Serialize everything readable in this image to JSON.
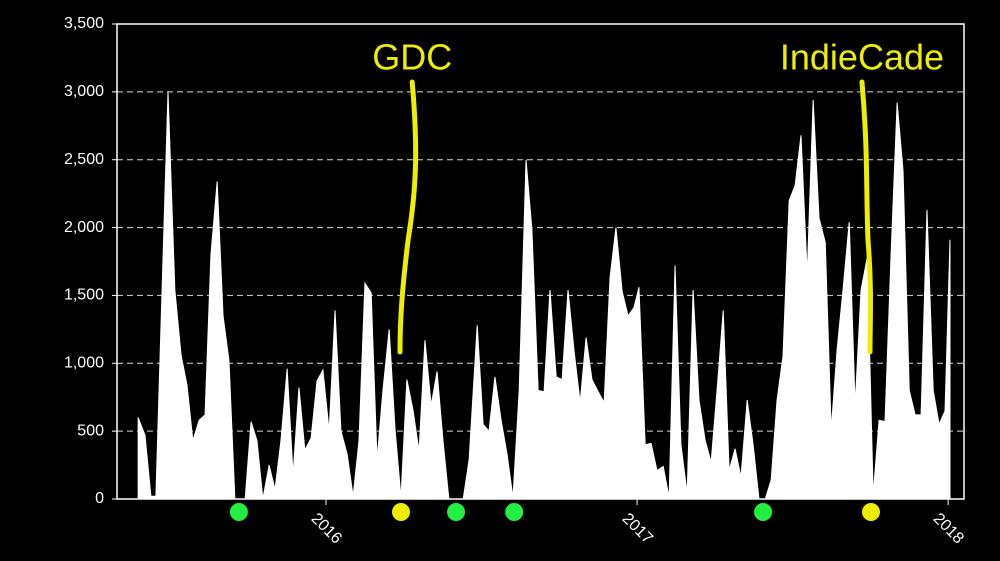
{
  "chart_data": {
    "type": "area",
    "color": "#ffffff",
    "grid": true,
    "xlim": [
      2015.328,
      2018.051
    ],
    "xticks": [
      2016,
      2017,
      2018
    ],
    "ylim": [
      0,
      3500
    ],
    "yticks": [
      0,
      500,
      {
        "value": 1000,
        "label": "1,000"
      },
      {
        "value": 1500,
        "label": "1,500"
      },
      {
        "value": 2000,
        "label": "2,000"
      },
      {
        "value": 2500,
        "label": "2,500"
      },
      {
        "value": 3000,
        "label": "3,000"
      },
      {
        "value": 3500,
        "label": "3,500"
      }
    ],
    "x": [
      2015.396,
      2015.418,
      2015.437,
      2015.453,
      2015.492,
      2015.514,
      2015.534,
      2015.553,
      2015.572,
      2015.592,
      2015.611,
      2015.63,
      2015.65,
      2015.669,
      2015.688,
      2015.707,
      2015.74,
      2015.759,
      2015.778,
      2015.797,
      2015.817,
      2015.836,
      2015.855,
      2015.875,
      2015.894,
      2015.913,
      2015.932,
      2015.952,
      2015.971,
      2015.99,
      2016.01,
      2016.029,
      2016.048,
      2016.068,
      2016.087,
      2016.106,
      2016.125,
      2016.145,
      2016.164,
      2016.183,
      2016.203,
      2016.222,
      2016.241,
      2016.26,
      2016.28,
      2016.299,
      2016.318,
      2016.338,
      2016.357,
      2016.376,
      2016.395,
      2016.441,
      2016.46,
      2016.486,
      2016.505,
      2016.524,
      2016.543,
      2016.563,
      2016.582,
      2016.601,
      2016.621,
      2016.643,
      2016.662,
      2016.682,
      2016.701,
      2016.72,
      2016.74,
      2016.759,
      2016.778,
      2016.797,
      2016.817,
      2016.836,
      2016.855,
      2016.875,
      2016.894,
      2016.913,
      2016.932,
      2016.952,
      2016.971,
      2016.99,
      2017.006,
      2017.026,
      2017.045,
      2017.064,
      2017.084,
      2017.103,
      2017.122,
      2017.141,
      2017.161,
      2017.18,
      2017.199,
      2017.219,
      2017.238,
      2017.257,
      2017.277,
      2017.296,
      2017.315,
      2017.334,
      2017.354,
      2017.373,
      2017.392,
      2017.412,
      2017.431,
      2017.45,
      2017.469,
      2017.489,
      2017.508,
      2017.527,
      2017.547,
      2017.566,
      2017.585,
      2017.605,
      2017.624,
      2017.643,
      2017.662,
      2017.682,
      2017.701,
      2017.72,
      2017.74,
      2017.759,
      2017.778,
      2017.797,
      2017.817,
      2017.836,
      2017.855,
      2017.875,
      2017.894,
      2017.913,
      2017.932,
      2017.952,
      2017.971,
      2017.99,
      2018.006
    ],
    "values": [
      600,
      470,
      20,
      20,
      3000,
      1540,
      1060,
      840,
      430,
      580,
      620,
      1800,
      2340,
      1350,
      1020,
      0,
      0,
      570,
      430,
      0,
      250,
      70,
      430,
      960,
      180,
      820,
      360,
      450,
      870,
      950,
      500,
      1390,
      500,
      330,
      20,
      430,
      1590,
      1520,
      290,
      800,
      1250,
      510,
      10,
      880,
      650,
      350,
      1170,
      690,
      940,
      430,
      0,
      0,
      290,
      1280,
      550,
      500,
      900,
      580,
      330,
      10,
      800,
      2500,
      1980,
      800,
      790,
      1540,
      900,
      880,
      1540,
      1100,
      710,
      1190,
      880,
      790,
      710,
      1630,
      2000,
      1530,
      1350,
      1410,
      1560,
      400,
      410,
      210,
      240,
      10,
      1720,
      400,
      40,
      1540,
      730,
      430,
      270,
      800,
      1390,
      210,
      370,
      160,
      730,
      400,
      0,
      0,
      140,
      730,
      1050,
      2200,
      2310,
      2680,
      1650,
      2940,
      2070,
      1890,
      510,
      1100,
      1540,
      2040,
      690,
      1540,
      1780,
      30,
      580,
      570,
      1830,
      2920,
      2420,
      800,
      620,
      620,
      2130,
      800,
      550,
      650,
      1910
    ],
    "events": [
      {
        "x": 2015.72,
        "color": "#22ee44"
      },
      {
        "x": 2016.241,
        "color": "#eeee00"
      },
      {
        "x": 2016.418,
        "color": "#22ee44"
      },
      {
        "x": 2016.605,
        "color": "#22ee44"
      },
      {
        "x": 2017.405,
        "color": "#22ee44"
      },
      {
        "x": 2017.752,
        "color": "#eeee00"
      }
    ],
    "annotations": [
      {
        "text": "GDC",
        "x": 2016.277,
        "color": "#eeee00"
      },
      {
        "text": "IndieCade",
        "x": 2017.723,
        "color": "#eeee00"
      }
    ]
  }
}
